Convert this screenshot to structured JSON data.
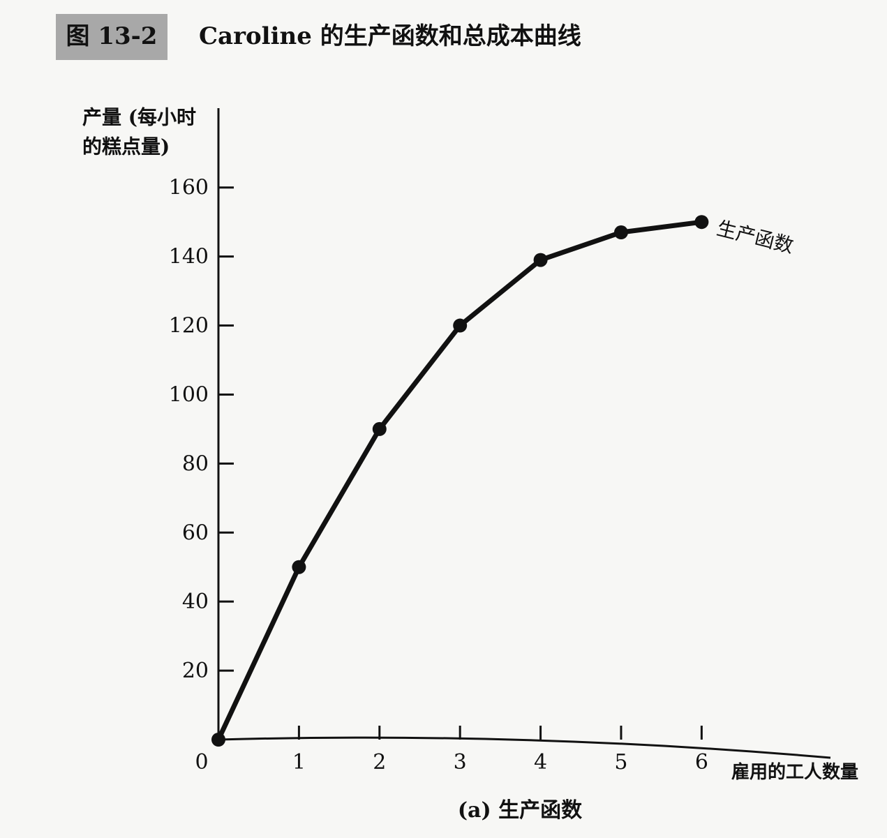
{
  "figure_label": "图 13-2",
  "chart_data": {
    "type": "line",
    "title": "Caroline 的生产函数和总成本曲线",
    "subtitle": "(a) 生产函数",
    "ylabel": [
      "产量 (每小时",
      "的糕点量)"
    ],
    "xlabel": "雇用的工人数量",
    "x": [
      0,
      1,
      2,
      3,
      4,
      5,
      6
    ],
    "series": [
      {
        "name": "生产函数",
        "color": "#111111",
        "values": [
          0,
          50,
          90,
          120,
          139,
          147,
          150
        ]
      }
    ],
    "xlim": [
      0,
      7.6
    ],
    "ylim": [
      0,
      183
    ],
    "xticks": [
      0,
      1,
      2,
      3,
      4,
      5,
      6
    ],
    "yticks": [
      20,
      40,
      60,
      80,
      100,
      120,
      140,
      160
    ]
  }
}
